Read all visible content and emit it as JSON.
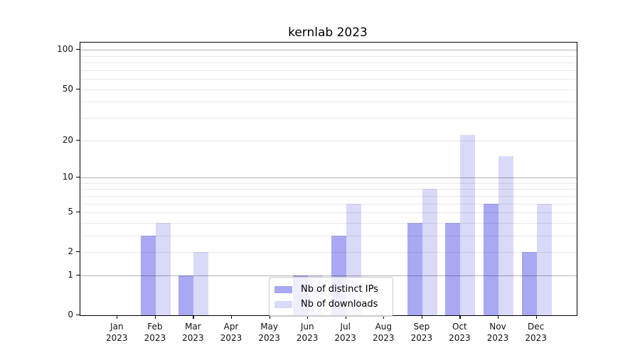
{
  "chart_data": {
    "type": "bar",
    "title": "kernlab 2023",
    "months": [
      "Jan",
      "Feb",
      "Mar",
      "Apr",
      "May",
      "Jun",
      "Jul",
      "Aug",
      "Sep",
      "Oct",
      "Nov",
      "Dec"
    ],
    "year_label": "2023",
    "series": [
      {
        "name": "Nb of distinct IPs",
        "color": "#a8a8f3",
        "values": [
          0,
          3,
          1,
          0,
          0,
          1,
          3,
          0,
          4,
          4,
          6,
          2
        ]
      },
      {
        "name": "Nb of downloads",
        "color": "#d9d9f8",
        "values": [
          0,
          4,
          2,
          0,
          0,
          1,
          6,
          0,
          8,
          22,
          15,
          6
        ]
      }
    ],
    "y_scale": "log10(1+x)",
    "y_ticks": [
      0,
      1,
      2,
      5,
      10,
      20,
      50,
      100
    ],
    "y_major_gridlines": [
      1,
      10,
      100
    ],
    "y_minor_gridlines": [
      2,
      3,
      4,
      5,
      6,
      7,
      8,
      9,
      20,
      30,
      40,
      50,
      60,
      70,
      80,
      90
    ],
    "ylim": [
      0,
      115
    ],
    "grid": "on",
    "legend_position": "lower center inside plot",
    "colors": {
      "distinct_ips_bar": "#a8a8f3",
      "downloads_bar": "#d9d9f8",
      "major_grid": "#b3b3b3",
      "minor_grid": "#e8e8e8",
      "spine": "#000000"
    }
  }
}
